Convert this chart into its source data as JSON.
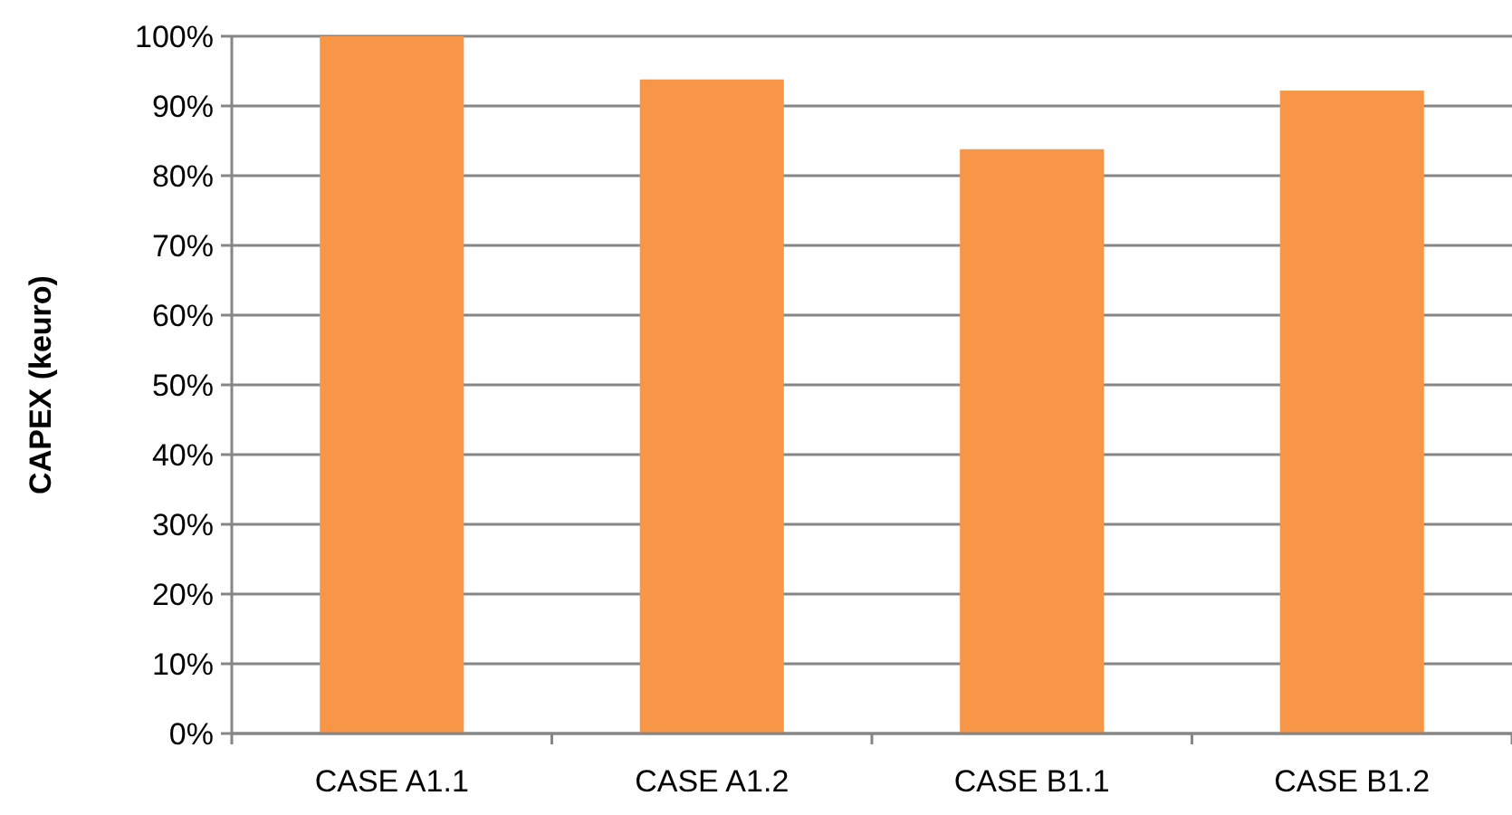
{
  "chart_data": {
    "type": "bar",
    "ylabel": "CAPEX (keuro)",
    "categories": [
      "CASE A1.1",
      "CASE A1.2",
      "CASE B1.1",
      "CASE B1.2"
    ],
    "values": [
      100,
      93.8,
      83.8,
      92.2
    ],
    "color": "#f79646",
    "ylim": [
      0,
      100
    ],
    "yticks": [
      {
        "value": 0,
        "label": "0%"
      },
      {
        "value": 10,
        "label": "10%"
      },
      {
        "value": 20,
        "label": "20%"
      },
      {
        "value": 30,
        "label": "30%"
      },
      {
        "value": 40,
        "label": "40%"
      },
      {
        "value": 50,
        "label": "50%"
      },
      {
        "value": 60,
        "label": "60%"
      },
      {
        "value": 70,
        "label": "70%"
      },
      {
        "value": 80,
        "label": "80%"
      },
      {
        "value": 90,
        "label": "90%"
      },
      {
        "value": 100,
        "label": "100%"
      }
    ],
    "grid": "y"
  }
}
